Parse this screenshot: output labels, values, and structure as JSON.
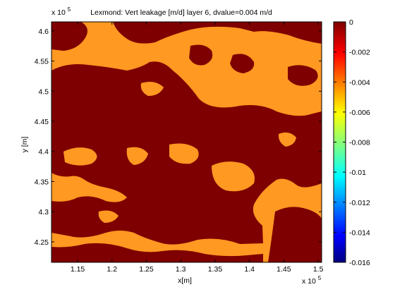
{
  "chart_data": {
    "type": "heatmap",
    "title": "Lexmond: Vert leakage [m/d] layer 6, dvalue=0.004 m/d",
    "xlabel": "x[m]",
    "ylabel": "y [m]",
    "x_exponent_label": "x 10",
    "x_exponent": "5",
    "y_exponent_label": "x 10",
    "y_exponent": "5",
    "xlim": [
      1.112,
      1.505
    ],
    "ylim": [
      4.216,
      4.615
    ],
    "xticks": [
      1.15,
      1.2,
      1.25,
      1.3,
      1.35,
      1.4,
      1.45,
      1.5
    ],
    "xtick_labels": [
      "1.15",
      "1.2",
      "1.25",
      "1.3",
      "1.35",
      "1.4",
      "1.45",
      "1.5"
    ],
    "yticks": [
      4.25,
      4.3,
      4.35,
      4.4,
      4.45,
      4.5,
      4.55,
      4.6
    ],
    "ytick_labels": [
      "4.25",
      "4.3",
      "4.35",
      "4.4",
      "4.45",
      "4.5",
      "4.55",
      "4.6"
    ],
    "colorbar": {
      "range": [
        -0.016,
        0
      ],
      "ticks": [
        0,
        -0.002,
        -0.004,
        -0.006,
        -0.008,
        -0.01,
        -0.012,
        -0.014,
        -0.016
      ],
      "tick_labels": [
        "0",
        "-0.002",
        "-0.004",
        "-0.006",
        "-0.008",
        "-0.01",
        "-0.012",
        "-0.014",
        "-0.016"
      ],
      "colormap": "jet"
    },
    "field_values": {
      "dominant": 0,
      "secondary": -0.004
    },
    "colors": {
      "dark_red": "#7f0000",
      "orange": "#ff9922"
    }
  }
}
